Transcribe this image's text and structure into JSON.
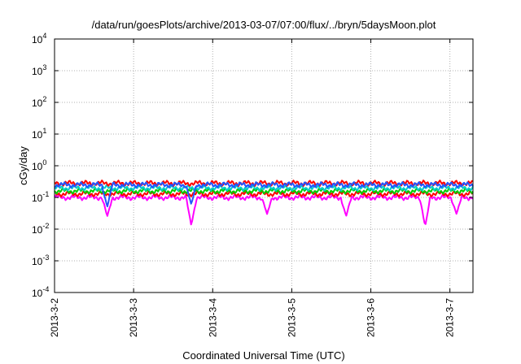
{
  "chart_data": {
    "type": "line",
    "title": "/data/run/goesPlots/archive/2013-03-07/07:00/flux/../bryn/5daysMoon.plot",
    "xlabel": "Coordinated Universal Time (UTC)",
    "ylabel": "cGy/day",
    "yscale": "log",
    "ylim": [
      0.0001,
      10000
    ],
    "xlim": [
      "2013-03-02T00:00",
      "2013-03-07T07:00"
    ],
    "x_ticks": [
      "2013-3-2",
      "2013-3-3",
      "2013-3-4",
      "2013-3-5",
      "2013-3-6",
      "2013-3-7"
    ],
    "y_ticks": [
      {
        "base": "10",
        "exp": "-4",
        "value": 0.0001
      },
      {
        "base": "10",
        "exp": "-3",
        "value": 0.001
      },
      {
        "base": "10",
        "exp": "-2",
        "value": 0.01
      },
      {
        "base": "10",
        "exp": "-1",
        "value": 0.1
      },
      {
        "base": "10",
        "exp": "0",
        "value": 1
      },
      {
        "base": "10",
        "exp": "1",
        "value": 10
      },
      {
        "base": "10",
        "exp": "2",
        "value": 100
      },
      {
        "base": "10",
        "exp": "3",
        "value": 1000
      },
      {
        "base": "10",
        "exp": "4",
        "value": 10000
      }
    ],
    "grid": true,
    "legend": "none",
    "series": [
      {
        "color": "#ff00ff",
        "base": 0.1,
        "dips": [
          [
            "2013-03-02T16:00",
            0.025
          ],
          [
            "2013-03-03T17:30",
            0.013
          ],
          [
            "2013-03-04T16:30",
            0.03
          ],
          [
            "2013-03-05T16:30",
            0.025
          ],
          [
            "2013-03-06T16:30",
            0.012
          ],
          [
            "2013-03-07T02:00",
            0.03
          ]
        ]
      },
      {
        "color": "#ff0000",
        "base": 0.13,
        "dips": []
      },
      {
        "color": "#00cc00",
        "base": 0.16,
        "dips": []
      },
      {
        "color": "#00cccc",
        "base": 0.2,
        "dips": []
      },
      {
        "color": "#ff0000",
        "base": 0.28,
        "dips": []
      },
      {
        "color": "#2255ff",
        "base": 0.25,
        "dips": [
          [
            "2013-03-02T16:00",
            0.05
          ],
          [
            "2013-03-03T17:30",
            0.06
          ]
        ]
      }
    ]
  }
}
